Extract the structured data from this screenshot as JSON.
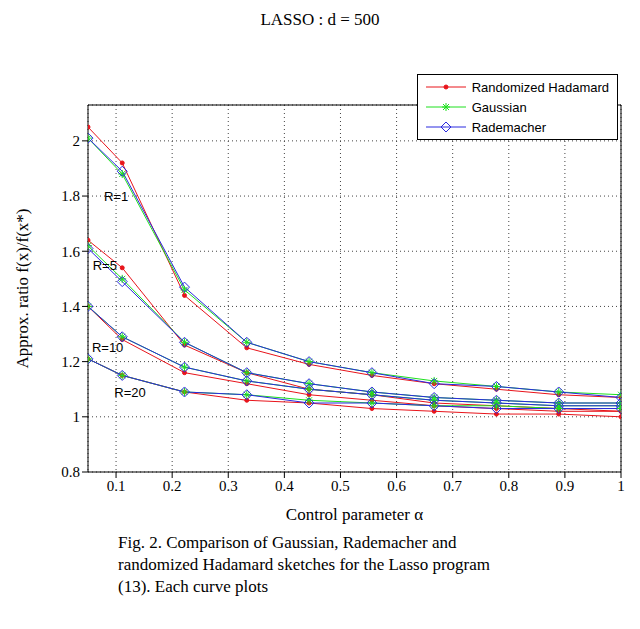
{
  "chart_data": {
    "type": "line",
    "title": "LASSO : d = 500",
    "x_label": "Control parameter α",
    "y_label": "Approx. ratio f(x)/f(x*)",
    "caption": "Fig. 2. Comparison of Gaussian, Rademacher and randomized Hadamard sketches for the Lasso program (13). Each curve plots",
    "x": [
      0.05,
      0.111,
      0.222,
      0.333,
      0.444,
      0.556,
      0.667,
      0.778,
      0.889,
      1.0
    ],
    "xlim": [
      0.05,
      1
    ],
    "xticks": [
      0.1,
      0.2,
      0.3,
      0.4,
      0.5,
      0.6,
      0.7,
      0.8,
      0.9,
      1
    ],
    "ylim": [
      0.8,
      2.13
    ],
    "yticks": [
      0.8,
      1,
      1.2,
      1.4,
      1.6,
      1.8,
      2
    ],
    "grid": true,
    "legend": "upper right",
    "series": [
      {
        "name": "Randomized Hadamard",
        "color": "#e8141b",
        "marker": "dot",
        "values": [
          2.05,
          1.92,
          1.44,
          1.25,
          1.19,
          1.15,
          1.12,
          1.1,
          1.08,
          1.07
        ]
      },
      {
        "name": "Gaussian",
        "color": "#1ee01e",
        "marker": "star",
        "values": [
          2.01,
          1.88,
          1.46,
          1.27,
          1.2,
          1.16,
          1.13,
          1.11,
          1.09,
          1.08
        ]
      },
      {
        "name": "Rademacher",
        "color": "#2a2adf",
        "marker": "diamond",
        "values": [
          2.01,
          1.89,
          1.47,
          1.27,
          1.2,
          1.16,
          1.12,
          1.11,
          1.09,
          1.07
        ]
      },
      {
        "name": "Randomized Hadamard",
        "color": "#e8141b",
        "marker": "dot",
        "values": [
          1.64,
          1.54,
          1.26,
          1.16,
          1.1,
          1.08,
          1.05,
          1.04,
          1.03,
          1.02
        ]
      },
      {
        "name": "Gaussian",
        "color": "#1ee01e",
        "marker": "star",
        "values": [
          1.62,
          1.5,
          1.27,
          1.16,
          1.12,
          1.09,
          1.07,
          1.06,
          1.05,
          1.05
        ]
      },
      {
        "name": "Rademacher",
        "color": "#2a2adf",
        "marker": "diamond",
        "values": [
          1.61,
          1.49,
          1.27,
          1.16,
          1.12,
          1.09,
          1.07,
          1.06,
          1.05,
          1.05
        ]
      },
      {
        "name": "Randomized Hadamard",
        "color": "#e8141b",
        "marker": "dot",
        "values": [
          1.4,
          1.28,
          1.16,
          1.12,
          1.08,
          1.06,
          1.04,
          1.03,
          1.02,
          1.02
        ]
      },
      {
        "name": "Gaussian",
        "color": "#1ee01e",
        "marker": "star",
        "values": [
          1.4,
          1.29,
          1.18,
          1.13,
          1.1,
          1.08,
          1.06,
          1.05,
          1.04,
          1.04
        ]
      },
      {
        "name": "Rademacher",
        "color": "#2a2adf",
        "marker": "diamond",
        "values": [
          1.4,
          1.29,
          1.18,
          1.13,
          1.1,
          1.08,
          1.06,
          1.05,
          1.04,
          1.04
        ]
      },
      {
        "name": "Randomized Hadamard",
        "color": "#e8141b",
        "marker": "dot",
        "values": [
          1.21,
          1.15,
          1.09,
          1.06,
          1.05,
          1.03,
          1.02,
          1.01,
          1.01,
          1.0
        ]
      },
      {
        "name": "Gaussian",
        "color": "#1ee01e",
        "marker": "star",
        "values": [
          1.21,
          1.15,
          1.09,
          1.08,
          1.06,
          1.05,
          1.04,
          1.04,
          1.03,
          1.03
        ]
      },
      {
        "name": "Rademacher",
        "color": "#2a2adf",
        "marker": "diamond",
        "values": [
          1.21,
          1.15,
          1.09,
          1.08,
          1.05,
          1.05,
          1.04,
          1.03,
          1.03,
          1.03
        ]
      }
    ],
    "annotations": [
      {
        "text": "R=1",
        "x": 0.1,
        "y": 1.8
      },
      {
        "text": "R=5",
        "x": 0.08,
        "y": 1.55
      },
      {
        "text": "R=10",
        "x": 0.085,
        "y": 1.25
      },
      {
        "text": "R=20",
        "x": 0.125,
        "y": 1.09
      }
    ]
  }
}
